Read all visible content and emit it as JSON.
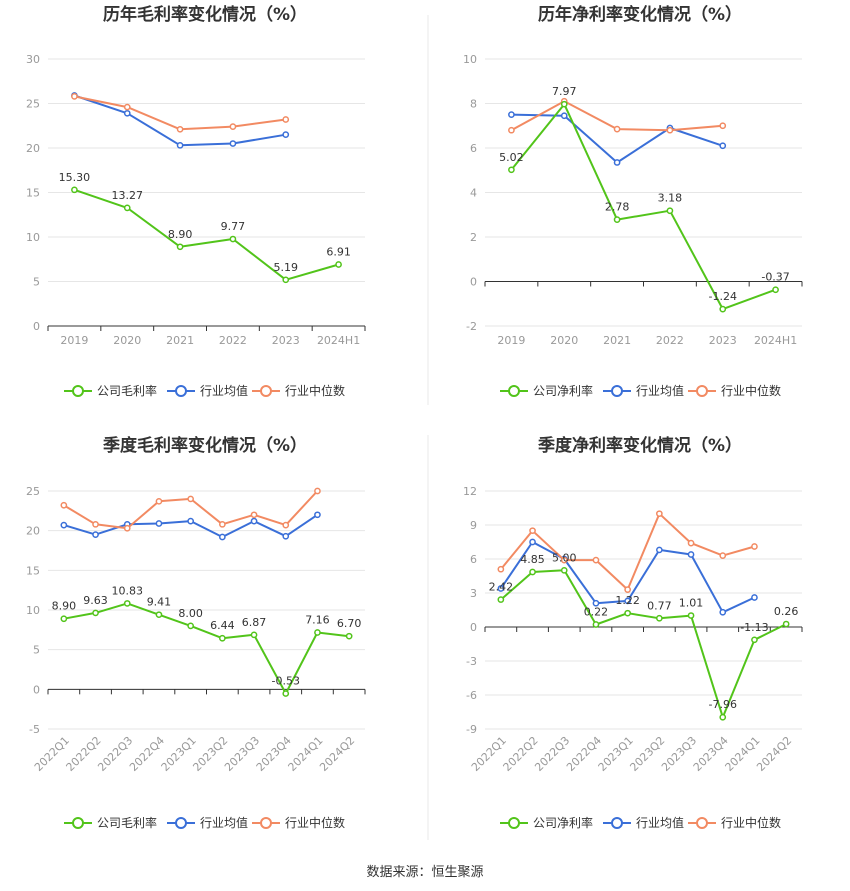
{
  "colors": {
    "company": "#52c41a",
    "avg": "#3a6fd8",
    "median": "#f28a62",
    "grid": "#e6e6e6",
    "axis": "#cccccc",
    "divider": "#e8e8e8"
  },
  "legend": {
    "gross": [
      "公司毛利率",
      "行业均值",
      "行业中位数"
    ],
    "net": [
      "公司净利率",
      "行业均值",
      "行业中位数"
    ]
  },
  "source": "数据来源：恒生聚源",
  "chart_data": [
    {
      "type": "line",
      "title": "历年毛利率变化情况（%）",
      "categories": [
        "2019",
        "2020",
        "2021",
        "2022",
        "2023",
        "2024H1"
      ],
      "ylim": [
        0,
        30
      ],
      "yticks": [
        0,
        5,
        10,
        15,
        20,
        25,
        30
      ],
      "grid": true,
      "legend_position": "bottom",
      "series": [
        {
          "name": "公司毛利率",
          "values": [
            15.3,
            13.27,
            8.9,
            9.77,
            5.19,
            6.91
          ],
          "labels": [
            "15.30",
            "13.27",
            "8.90",
            "9.77",
            "5.19",
            "6.91"
          ]
        },
        {
          "name": "行业均值",
          "values": [
            25.9,
            23.9,
            20.3,
            20.5,
            21.5,
            null
          ]
        },
        {
          "name": "行业中位数",
          "values": [
            25.8,
            24.6,
            22.1,
            22.4,
            23.2,
            null
          ]
        }
      ]
    },
    {
      "type": "line",
      "title": "历年净利率变化情况（%）",
      "categories": [
        "2019",
        "2020",
        "2021",
        "2022",
        "2023",
        "2024H1"
      ],
      "ylim": [
        -2,
        10
      ],
      "yticks": [
        -2,
        0,
        2,
        4,
        6,
        8,
        10
      ],
      "grid": true,
      "legend_position": "bottom",
      "series": [
        {
          "name": "公司净利率",
          "values": [
            5.02,
            7.97,
            2.78,
            3.18,
            -1.24,
            -0.37
          ],
          "labels": [
            "5.02",
            "7.97",
            "2.78",
            "3.18",
            "-1.24",
            "-0.37"
          ]
        },
        {
          "name": "行业均值",
          "values": [
            7.5,
            7.45,
            5.35,
            6.9,
            6.1,
            null
          ]
        },
        {
          "name": "行业中位数",
          "values": [
            6.8,
            8.1,
            6.85,
            6.8,
            7.0,
            null
          ]
        }
      ]
    },
    {
      "type": "line",
      "title": "季度毛利率变化情况（%）",
      "categories": [
        "2022Q1",
        "2022Q2",
        "2022Q3",
        "2022Q4",
        "2023Q1",
        "2023Q2",
        "2023Q3",
        "2023Q4",
        "2024Q1",
        "2024Q2"
      ],
      "ylim": [
        -5,
        25
      ],
      "yticks": [
        -5,
        0,
        5,
        10,
        15,
        20,
        25
      ],
      "grid": true,
      "legend_position": "bottom",
      "series": [
        {
          "name": "公司毛利率",
          "values": [
            8.9,
            9.63,
            10.83,
            9.41,
            8.0,
            6.44,
            6.87,
            -0.53,
            7.16,
            6.7
          ],
          "labels": [
            "8.90",
            "9.63",
            "10.83",
            "9.41",
            "8.00",
            "6.44",
            "6.87",
            "-0.53",
            "7.16",
            "6.70"
          ]
        },
        {
          "name": "行业均值",
          "values": [
            20.7,
            19.5,
            20.8,
            20.9,
            21.2,
            19.2,
            21.2,
            19.3,
            22.0,
            null
          ]
        },
        {
          "name": "行业中位数",
          "values": [
            23.2,
            20.8,
            20.3,
            23.7,
            24.0,
            20.8,
            22.0,
            20.7,
            25.0,
            null
          ]
        }
      ]
    },
    {
      "type": "line",
      "title": "季度净利率变化情况（%）",
      "categories": [
        "2022Q1",
        "2022Q2",
        "2022Q3",
        "2022Q4",
        "2023Q1",
        "2023Q2",
        "2023Q3",
        "2023Q4",
        "2024Q1",
        "2024Q2"
      ],
      "ylim": [
        -9,
        12
      ],
      "yticks": [
        -9,
        -6,
        -3,
        0,
        3,
        6,
        9,
        12
      ],
      "grid": true,
      "legend_position": "bottom",
      "series": [
        {
          "name": "公司净利率",
          "values": [
            2.42,
            4.85,
            5.0,
            0.22,
            1.22,
            0.77,
            1.01,
            -7.96,
            -1.13,
            0.26
          ],
          "labels": [
            "2.42",
            "4.85",
            "5.00",
            "0.22",
            "1.22",
            "0.77",
            "1.01",
            "-7.96",
            "-1.13",
            "0.26"
          ]
        },
        {
          "name": "行业均值",
          "values": [
            3.4,
            7.5,
            6.0,
            2.1,
            2.3,
            6.8,
            6.4,
            1.3,
            2.6,
            null
          ]
        },
        {
          "name": "行业中位数",
          "values": [
            5.1,
            8.5,
            5.9,
            5.9,
            3.3,
            10.0,
            7.4,
            6.3,
            7.1,
            null
          ]
        }
      ]
    }
  ]
}
